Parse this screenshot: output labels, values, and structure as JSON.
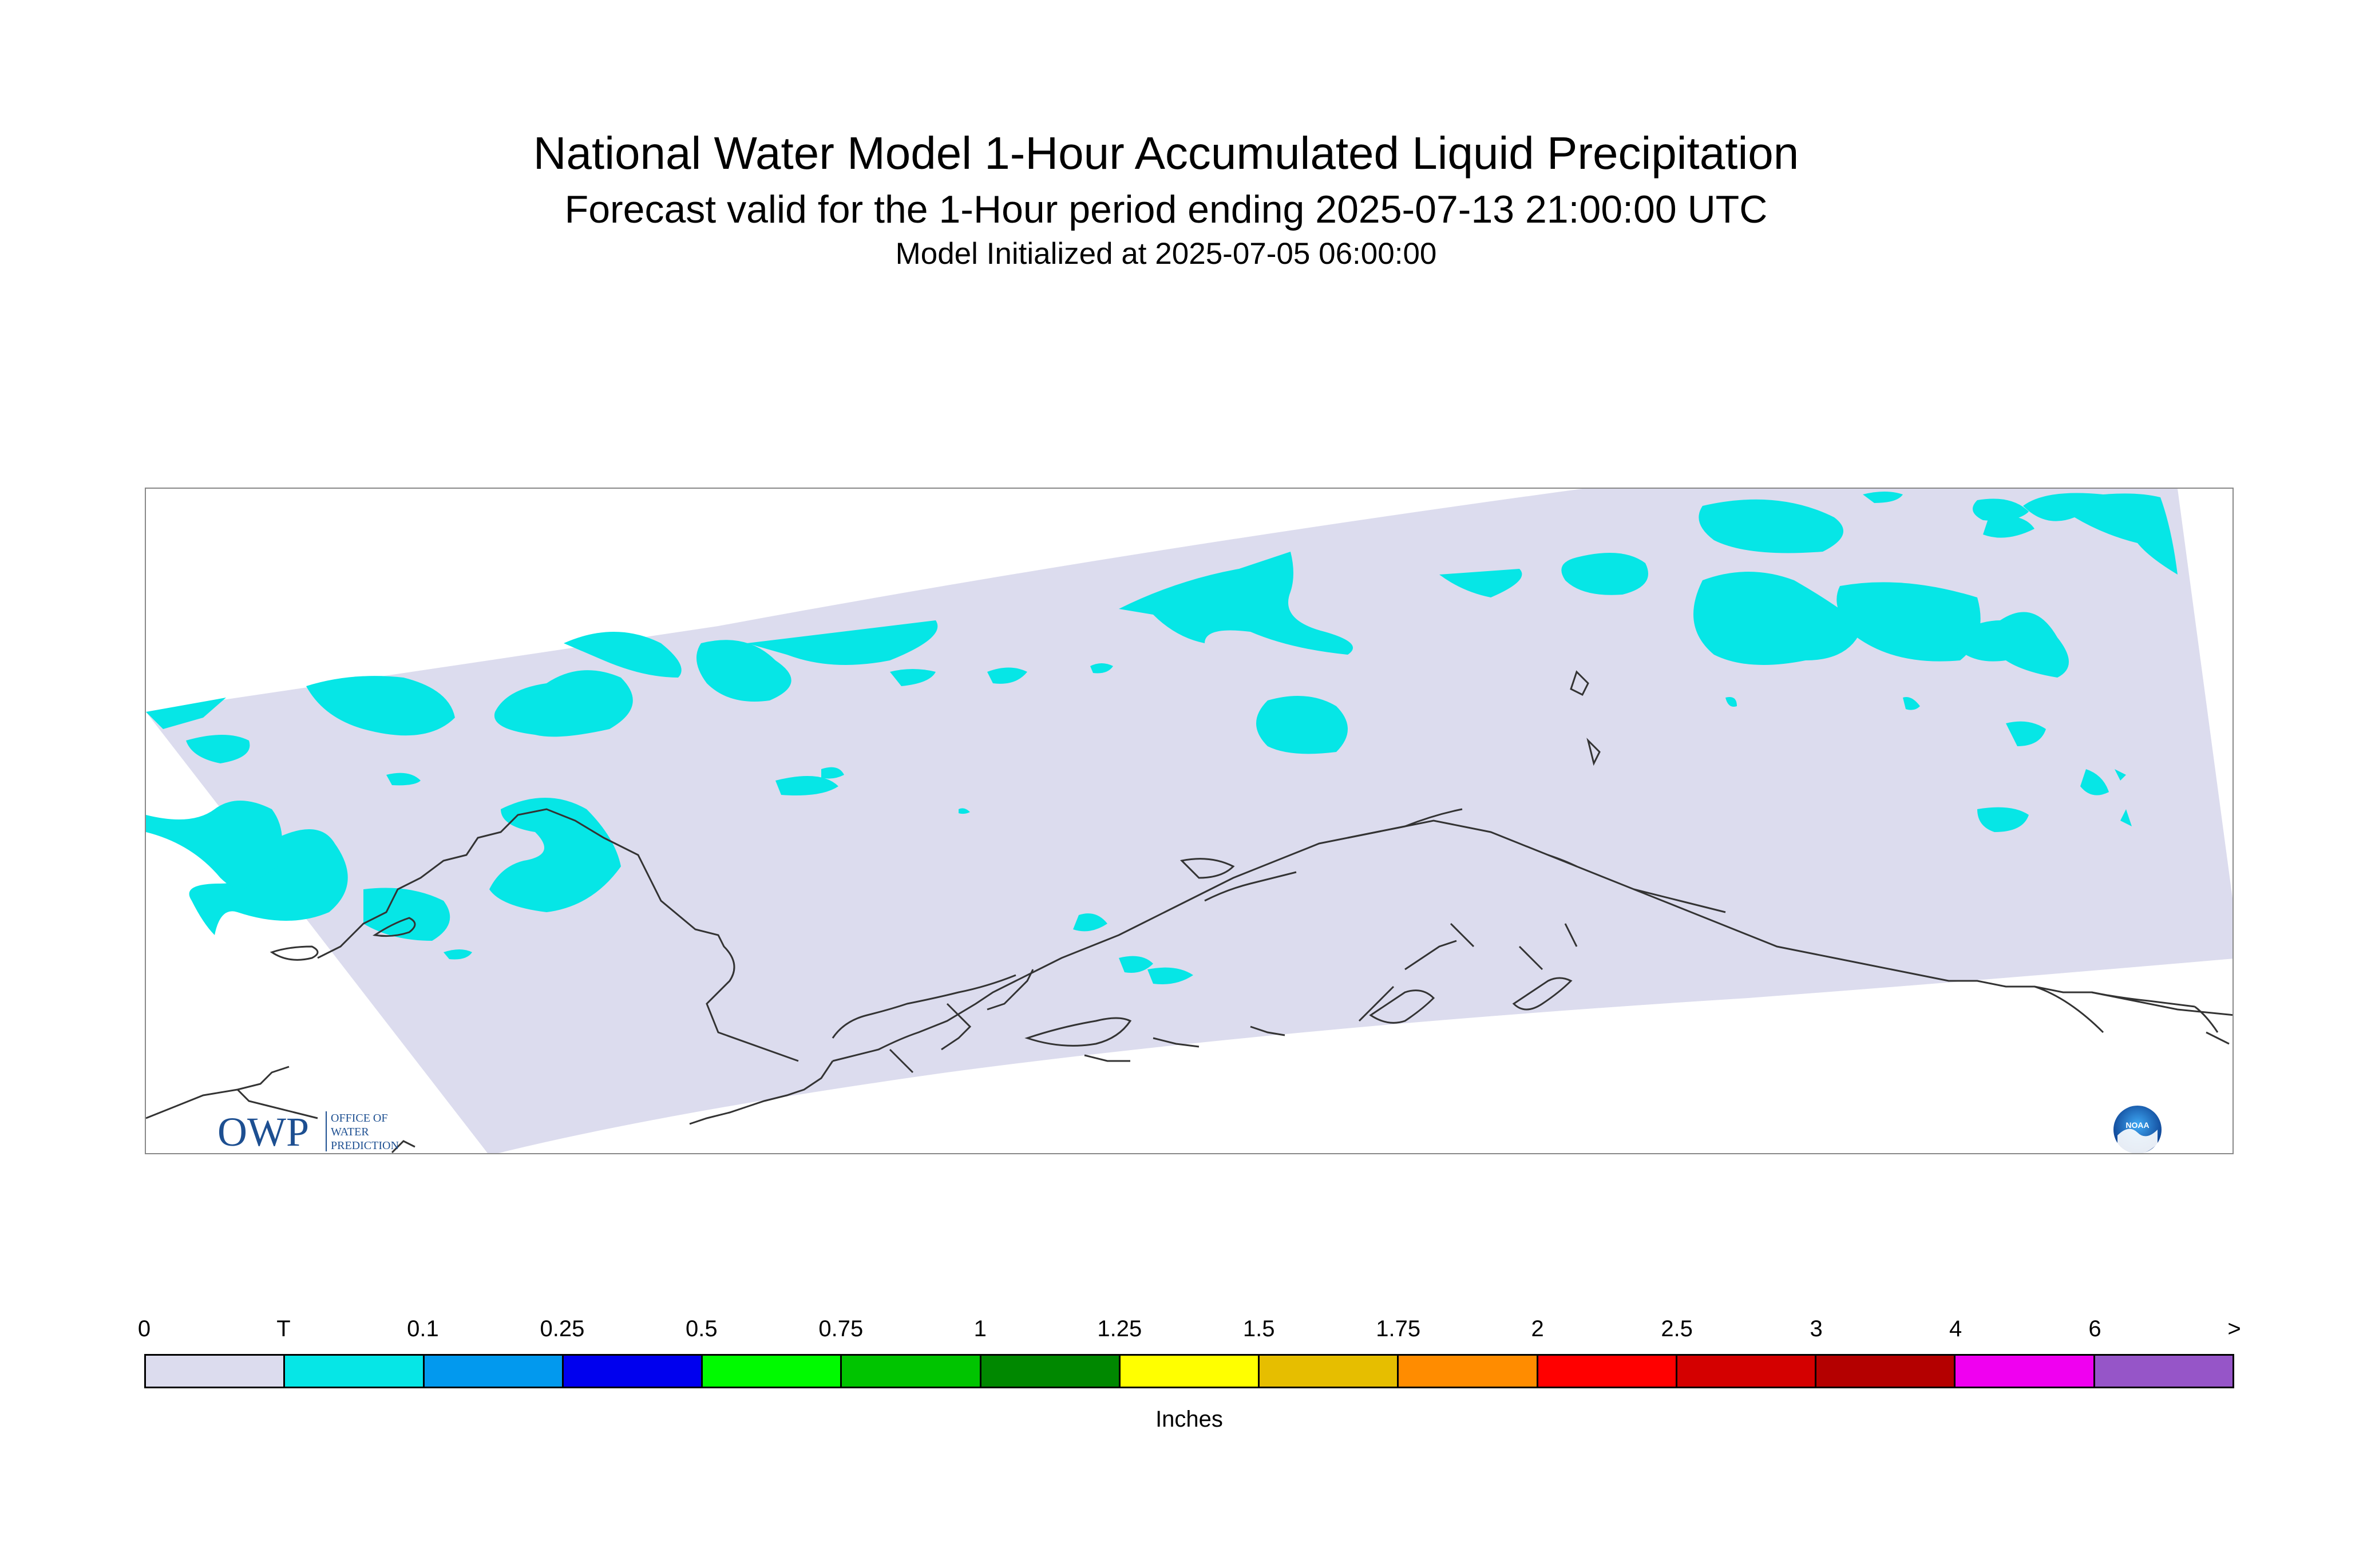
{
  "titles": {
    "main": "National Water Model 1-Hour Accumulated Liquid Precipitation",
    "sub": "Forecast valid for the 1-Hour period ending 2025-07-13 21:00:00 UTC",
    "init": "Model Initialized at 2025-07-05 06:00:00"
  },
  "logos": {
    "owp": {
      "letters": "OWP",
      "text": [
        "OFFICE OF",
        "WATER",
        "PREDICTION"
      ]
    },
    "noaa": {
      "text": "NOAA"
    }
  },
  "legend": {
    "tick_labels": [
      "0",
      "T",
      "0.1",
      "0.25",
      "0.5",
      "0.75",
      "1",
      "1.25",
      "1.5",
      "1.75",
      "2",
      "2.5",
      "3",
      "4",
      "6",
      ">"
    ],
    "colors": [
      "#dcdcee",
      "#06e6e6",
      "#0299ee",
      "#0000ee",
      "#00fa00",
      "#00c400",
      "#008800",
      "#ffff00",
      "#e6be00",
      "#ff8c00",
      "#ff0000",
      "#d40000",
      "#b40000",
      "#f000f0",
      "#9655c8"
    ],
    "unit": "Inches"
  },
  "map": {
    "background": "#ffffff",
    "domain_fill": "#dcdcee",
    "precip_color": "#06e6e6",
    "coastline_color": "#333333"
  }
}
